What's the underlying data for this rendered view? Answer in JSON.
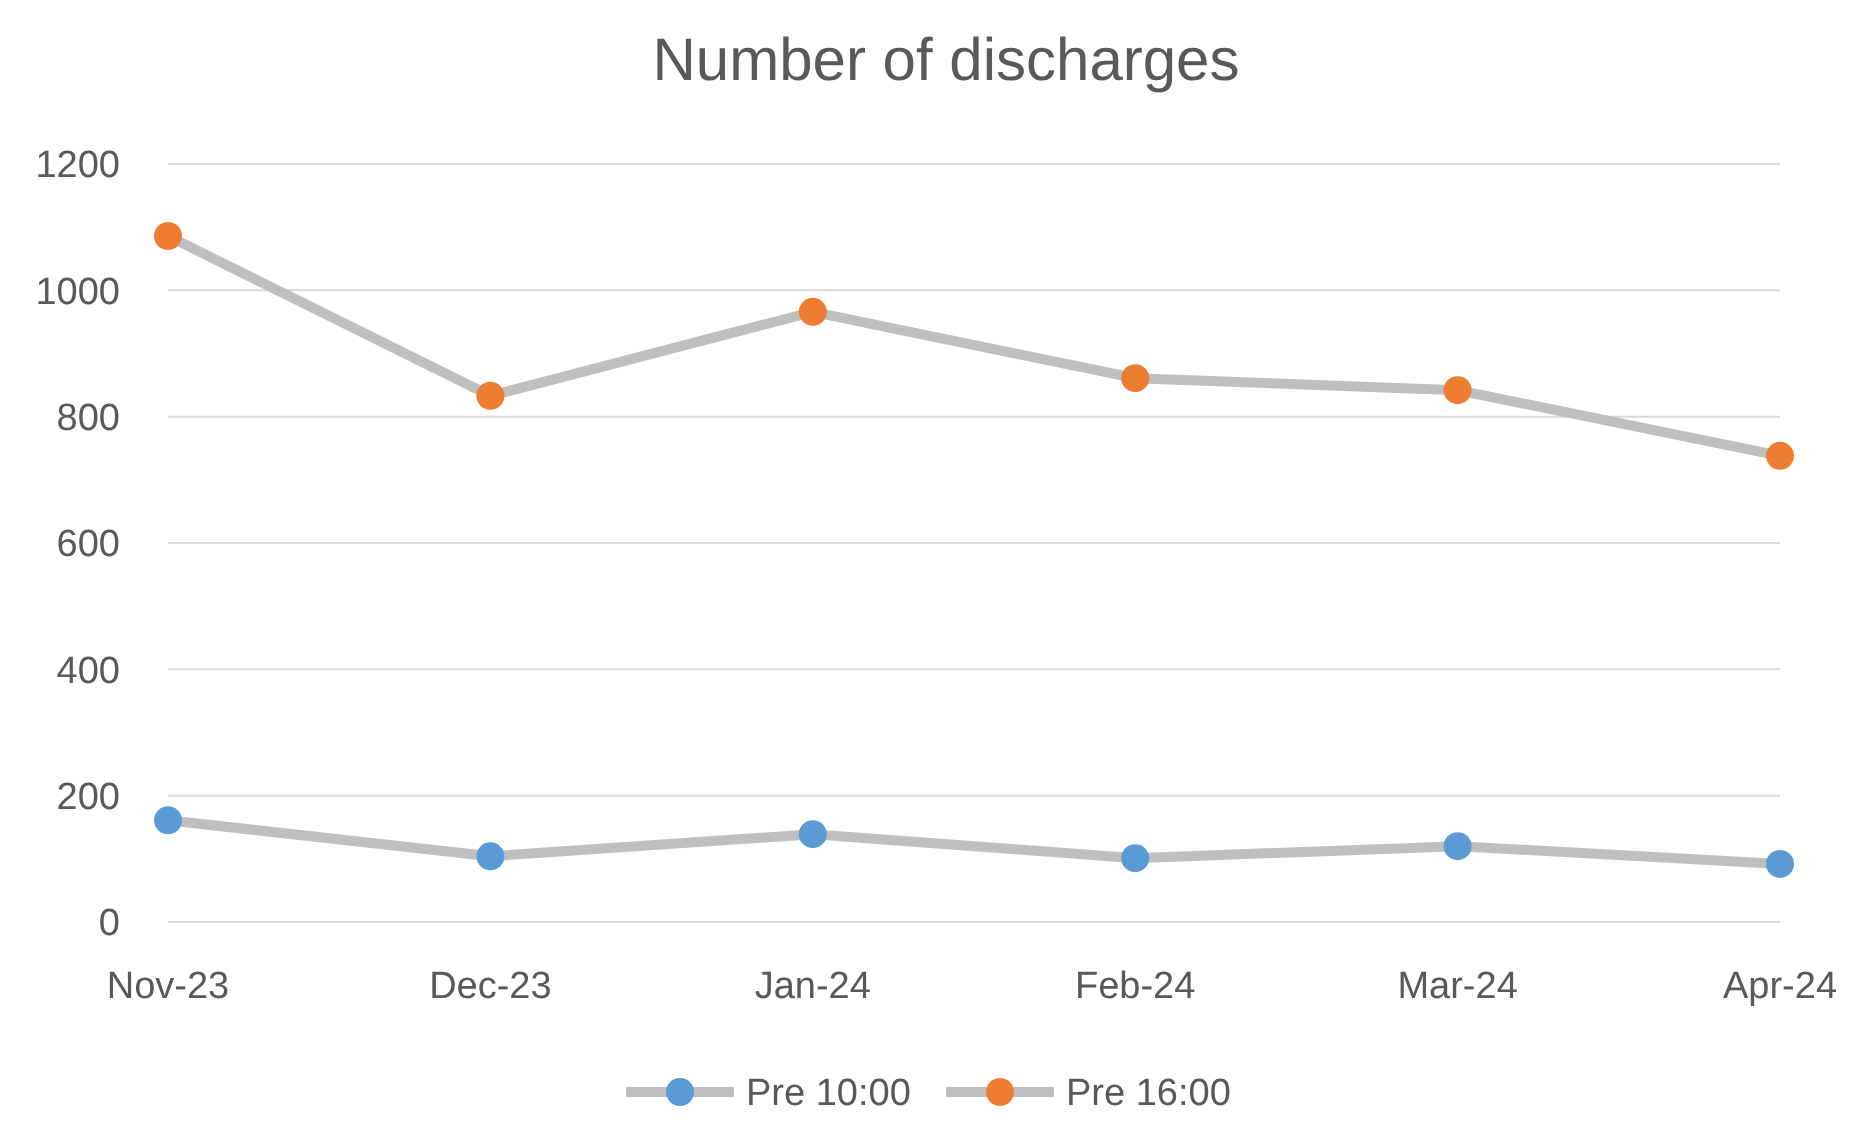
{
  "chart_data": {
    "type": "line",
    "title": "Number of discharges",
    "categories": [
      "Nov-23",
      "Dec-23",
      "Jan-24",
      "Feb-24",
      "Mar-24",
      "Apr-24"
    ],
    "series": [
      {
        "name": "Pre 10:00",
        "color": "#5b9bd5",
        "values": [
          161,
          104,
          139,
          101,
          120,
          92
        ]
      },
      {
        "name": "Pre 16:00",
        "color": "#ed7d31",
        "values": [
          1086,
          833,
          966,
          861,
          842,
          738
        ]
      }
    ],
    "ylim": [
      0,
      1200
    ],
    "yticks": [
      0,
      200,
      400,
      600,
      800,
      1000,
      1200
    ],
    "grid": "y",
    "legend": "bottom",
    "marker": "circle",
    "line_style": "solid"
  }
}
